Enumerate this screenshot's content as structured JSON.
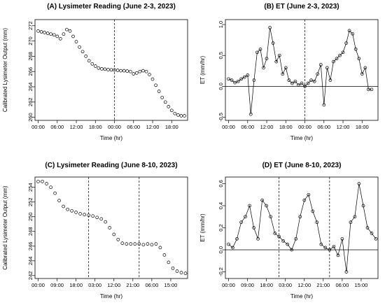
{
  "chart_data": [
    {
      "panel": "A",
      "type": "scatter",
      "title": "(A) Lysimeter Reading (June 2-3, 2023)",
      "xlabel": "Time (hr)",
      "ylabel": "Calibrated Lysimeter Output (mm)",
      "x_ticks": [
        "00:00",
        "06:00",
        "12:00",
        "18:00",
        "00:00",
        "06:00",
        "12:00",
        "18:00"
      ],
      "x_tick_hours": [
        0,
        6,
        12,
        18,
        24,
        30,
        36,
        42
      ],
      "xlim": [
        -1,
        47
      ],
      "ylim": [
        259.6,
        272.8
      ],
      "y_ticks": [
        260,
        262,
        264,
        266,
        268,
        270,
        272
      ],
      "vlines": [
        24
      ],
      "hline": null,
      "series": [
        {
          "x": [
            0,
            1,
            2,
            3,
            4,
            5,
            6,
            7,
            8,
            9,
            10,
            11,
            12,
            13,
            14,
            15,
            16,
            17,
            18,
            19,
            20,
            21,
            22,
            23,
            24,
            25,
            26,
            27,
            28,
            29,
            30,
            31,
            32,
            33,
            34,
            35,
            36,
            37,
            38,
            39,
            40,
            41,
            42,
            43,
            44,
            45,
            46
          ],
          "values": [
            271.3,
            271.2,
            271.1,
            271.0,
            270.9,
            270.8,
            270.6,
            270.3,
            270.9,
            271.5,
            271.3,
            270.6,
            269.9,
            269.2,
            268.6,
            268.0,
            267.4,
            267.0,
            266.7,
            266.45,
            266.35,
            266.3,
            266.25,
            266.22,
            266.2,
            266.15,
            266.1,
            266.1,
            266.05,
            266.0,
            265.7,
            265.8,
            266.0,
            266.1,
            266.0,
            265.6,
            265.0,
            264.2,
            263.4,
            262.6,
            262.0,
            261.4,
            260.9,
            260.5,
            260.3,
            260.2,
            260.2
          ]
        }
      ]
    },
    {
      "panel": "B",
      "type": "line",
      "title": "(B) ET (June 2-3, 2023)",
      "xlabel": "Time (hr)",
      "ylabel": "ET (mm/hr)",
      "x_ticks": [
        "00:00",
        "06:00",
        "12:00",
        "18:00",
        "00:00",
        "06:00",
        "12:00",
        "18:00"
      ],
      "x_tick_hours": [
        0,
        6,
        12,
        18,
        24,
        30,
        36,
        42
      ],
      "xlim": [
        -1,
        47
      ],
      "ylim": [
        -0.55,
        1.08
      ],
      "y_ticks": [
        -0.5,
        0.0,
        0.5,
        1.0
      ],
      "y_tick_labels": [
        "-0.5",
        "0.0",
        "0.5",
        "1.0"
      ],
      "vlines": [
        24
      ],
      "hline": 0,
      "series": [
        {
          "x": [
            0,
            1,
            2,
            3,
            4,
            5,
            6,
            7,
            8,
            9,
            10,
            11,
            12,
            13,
            14,
            15,
            16,
            17,
            18,
            19,
            20,
            21,
            22,
            23,
            24,
            25,
            26,
            27,
            28,
            29,
            30,
            31,
            32,
            33,
            34,
            35,
            36,
            37,
            38,
            39,
            40,
            41,
            42,
            43,
            44,
            45
          ],
          "values": [
            0.12,
            0.1,
            0.06,
            0.08,
            0.12,
            0.15,
            0.18,
            -0.45,
            0.1,
            0.55,
            0.6,
            0.3,
            0.45,
            0.95,
            0.7,
            0.4,
            0.5,
            0.2,
            0.3,
            0.1,
            0.05,
            0.08,
            0.02,
            0.05,
            0.0,
            0.05,
            0.1,
            0.08,
            0.2,
            0.35,
            -0.3,
            0.3,
            0.1,
            0.4,
            0.45,
            0.5,
            0.55,
            0.7,
            0.9,
            0.85,
            0.6,
            0.45,
            0.2,
            0.3,
            -0.05,
            -0.05
          ]
        }
      ]
    },
    {
      "panel": "C",
      "type": "scatter",
      "title": "(C) Lysimeter Reading (June 8-10, 2023)",
      "xlabel": "Time (hr)",
      "ylabel": "Calibrated Lysimeter Output (mm)",
      "x_ticks": [
        "00:00",
        "09:00",
        "18:00",
        "03:00",
        "12:00",
        "21:00",
        "06:00",
        "15:00"
      ],
      "x_tick_hours": [
        0,
        9,
        18,
        27,
        36,
        45,
        54,
        63
      ],
      "xlim": [
        -1.5,
        71
      ],
      "ylim": [
        241.6,
        255.4
      ],
      "y_ticks": [
        242,
        244,
        246,
        248,
        250,
        252,
        254
      ],
      "vlines": [
        24,
        48
      ],
      "hline": null,
      "series": [
        {
          "x": [
            0,
            2,
            4,
            6,
            8,
            10,
            12,
            14,
            16,
            18,
            20,
            22,
            24,
            26,
            28,
            30,
            32,
            34,
            36,
            38,
            40,
            42,
            44,
            46,
            48,
            50,
            52,
            54,
            56,
            58,
            60,
            62,
            64,
            66,
            68,
            70
          ],
          "values": [
            254.8,
            254.8,
            254.5,
            254.0,
            253.2,
            252.2,
            251.4,
            251.0,
            250.8,
            250.6,
            250.4,
            250.3,
            250.2,
            250.1,
            249.9,
            249.7,
            249.3,
            248.5,
            247.6,
            246.9,
            246.4,
            246.3,
            246.3,
            246.3,
            246.3,
            246.2,
            246.3,
            246.2,
            246.3,
            245.8,
            244.8,
            243.8,
            243.0,
            242.6,
            242.4,
            242.3
          ]
        }
      ]
    },
    {
      "panel": "D",
      "type": "line",
      "title": "(D) ET (June 8-10, 2023)",
      "xlabel": "Time (hr)",
      "ylabel": "ET (mm/hr)",
      "x_ticks": [
        "00:00",
        "09:00",
        "18:00",
        "03:00",
        "12:00",
        "21:00",
        "06:00",
        "15:00"
      ],
      "x_tick_hours": [
        0,
        9,
        18,
        27,
        36,
        45,
        54,
        63
      ],
      "xlim": [
        -1.5,
        71
      ],
      "ylim": [
        -0.26,
        0.66
      ],
      "y_ticks": [
        -0.2,
        0.0,
        0.2,
        0.4,
        0.6
      ],
      "y_tick_labels": [
        "-0.2",
        "0.0",
        "0.2",
        "0.4",
        "0.6"
      ],
      "vlines": [
        24,
        48
      ],
      "hline": 0,
      "series": [
        {
          "x": [
            0,
            2,
            4,
            6,
            8,
            10,
            12,
            14,
            16,
            18,
            20,
            22,
            24,
            26,
            28,
            30,
            32,
            34,
            36,
            38,
            40,
            42,
            44,
            46,
            48,
            50,
            52,
            54,
            56,
            58,
            60,
            62,
            64,
            66,
            68,
            70
          ],
          "values": [
            0.05,
            0.02,
            0.1,
            0.25,
            0.3,
            0.4,
            0.2,
            0.1,
            0.45,
            0.4,
            0.3,
            0.15,
            0.12,
            0.08,
            0.05,
            0.0,
            0.1,
            0.3,
            0.45,
            0.5,
            0.35,
            0.25,
            0.05,
            0.02,
            0.0,
            0.03,
            -0.05,
            0.1,
            -0.2,
            0.25,
            0.3,
            0.6,
            0.4,
            0.2,
            0.15,
            0.1
          ]
        }
      ]
    }
  ]
}
